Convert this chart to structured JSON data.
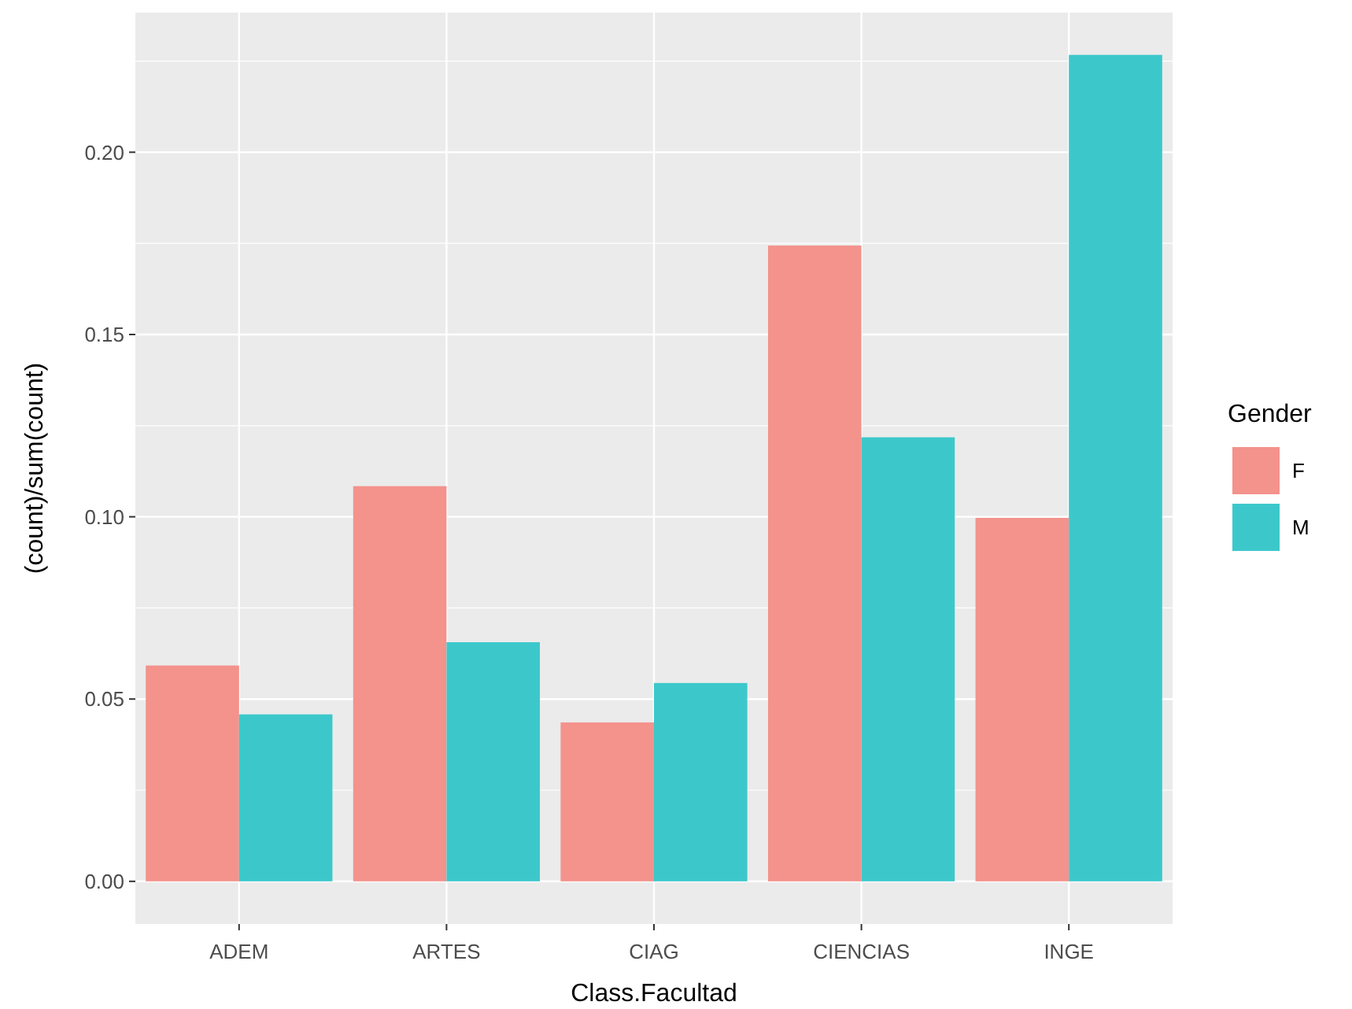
{
  "chart_data": {
    "type": "bar",
    "xlabel": "Class.Facultad",
    "ylabel": "(count)/sum(count)",
    "legend_title": "Gender",
    "categories": [
      "ADEM",
      "ARTES",
      "CIAG",
      "CIENCIAS",
      "INGE"
    ],
    "series": [
      {
        "name": "F",
        "color": "#f4928c",
        "values": [
          0.0592,
          0.1084,
          0.0436,
          0.1744,
          0.0997
        ]
      },
      {
        "name": "M",
        "color": "#3cc8cb",
        "values": [
          0.0458,
          0.0656,
          0.0544,
          0.1218,
          0.2267
        ]
      }
    ],
    "ylim": [
      -0.0117,
      0.2383
    ],
    "yticks": [
      {
        "value": 0,
        "label": "0.00"
      },
      {
        "value": 0.05,
        "label": "0.05"
      },
      {
        "value": 0.1,
        "label": "0.10"
      },
      {
        "value": 0.15,
        "label": "0.15"
      },
      {
        "value": 0.2,
        "label": "0.20"
      }
    ],
    "grid": true,
    "legend": "right"
  }
}
